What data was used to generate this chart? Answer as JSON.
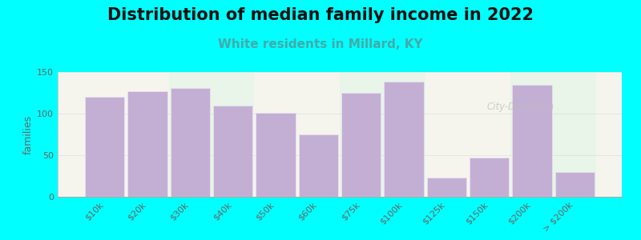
{
  "title": "Distribution of median family income in 2022",
  "subtitle": "White residents in Millard, KY",
  "ylabel": "families",
  "categories": [
    "$10k",
    "$20k",
    "$30k",
    "$40k",
    "$50k",
    "$60k",
    "$75k",
    "$100k",
    "$125k",
    "$150k",
    "$200k",
    "> $200k"
  ],
  "values": [
    120,
    127,
    131,
    110,
    101,
    75,
    125,
    138,
    23,
    47,
    135,
    30
  ],
  "bar_color": "#c4afd4",
  "bar_edgecolor": "#e8e0ee",
  "background_color": "#00ffff",
  "plot_bg_color_main": "#f5f5ee",
  "plot_bg_color_alt": "#e8f5e8",
  "ylim": [
    0,
    150
  ],
  "yticks": [
    0,
    50,
    100,
    150
  ],
  "title_fontsize": 15,
  "subtitle_fontsize": 11,
  "subtitle_color": "#44aaaa",
  "ylabel_fontsize": 9,
  "tick_fontsize": 8,
  "watermark": "City-Data.com"
}
